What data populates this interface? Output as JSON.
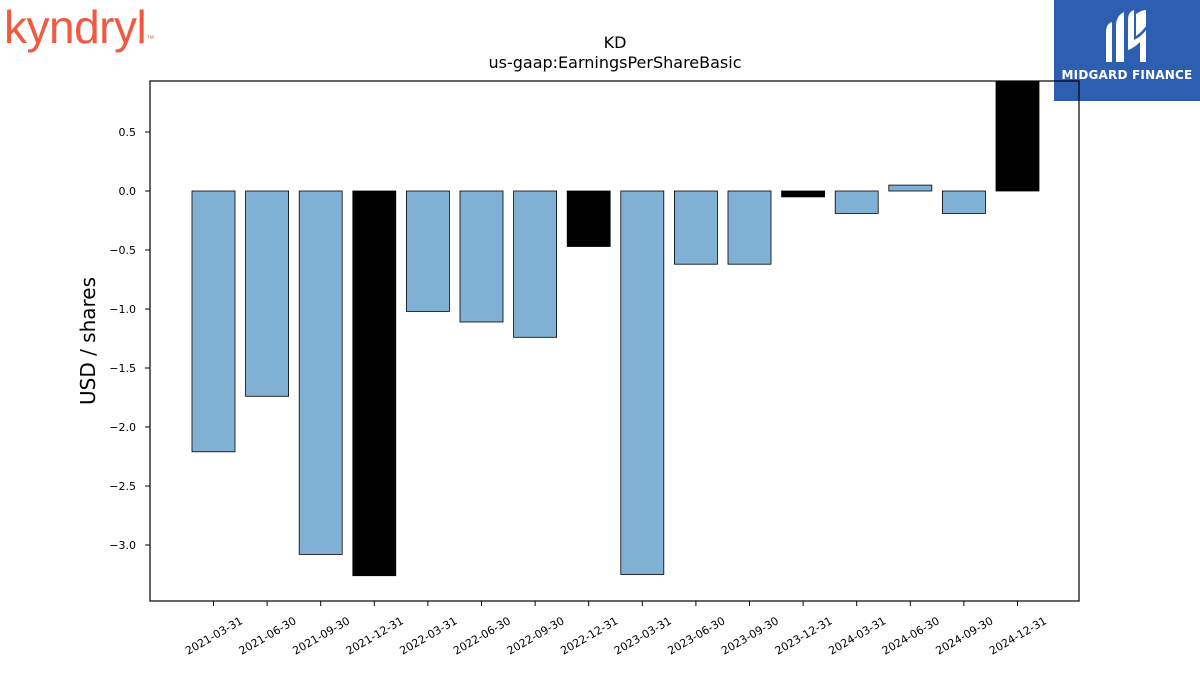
{
  "logos": {
    "left_text": "kyndryl",
    "left_tm": "™",
    "right_text": "MIDGARD FINANCE"
  },
  "chart_data": {
    "type": "bar",
    "title": "KD",
    "subtitle": "us-gaap:EarningsPerShareBasic",
    "xlabel": "",
    "ylabel": "USD / shares",
    "ylim": [
      -3.5,
      0.93
    ],
    "yticks": [
      0.5,
      0.0,
      -0.5,
      -1.0,
      -1.5,
      -2.0,
      -2.5,
      -3.0
    ],
    "ytick_labels": [
      "0.5",
      "0.0",
      "−0.5",
      "−1.0",
      "−1.5",
      "−2.0",
      "−2.5",
      "−3.0"
    ],
    "grid": false,
    "categories": [
      "2021-03-31",
      "2021-06-30",
      "2021-09-30",
      "2021-12-31",
      "2022-03-31",
      "2022-06-30",
      "2022-09-30",
      "2022-12-31",
      "2023-03-31",
      "2023-06-30",
      "2023-09-30",
      "2023-12-31",
      "2024-03-31",
      "2024-06-30",
      "2024-09-30",
      "2024-12-31"
    ],
    "values": [
      -2.21,
      -1.74,
      -3.08,
      -3.26,
      -1.02,
      -1.11,
      -1.24,
      -0.47,
      -3.25,
      -0.62,
      -0.62,
      -0.05,
      -0.19,
      0.05,
      -0.19,
      0.95
    ],
    "bar_colors": [
      "#80b0d4",
      "#80b0d4",
      "#80b0d4",
      "#000000",
      "#80b0d4",
      "#80b0d4",
      "#80b0d4",
      "#000000",
      "#80b0d4",
      "#80b0d4",
      "#80b0d4",
      "#000000",
      "#80b0d4",
      "#80b0d4",
      "#80b0d4",
      "#000000"
    ]
  }
}
